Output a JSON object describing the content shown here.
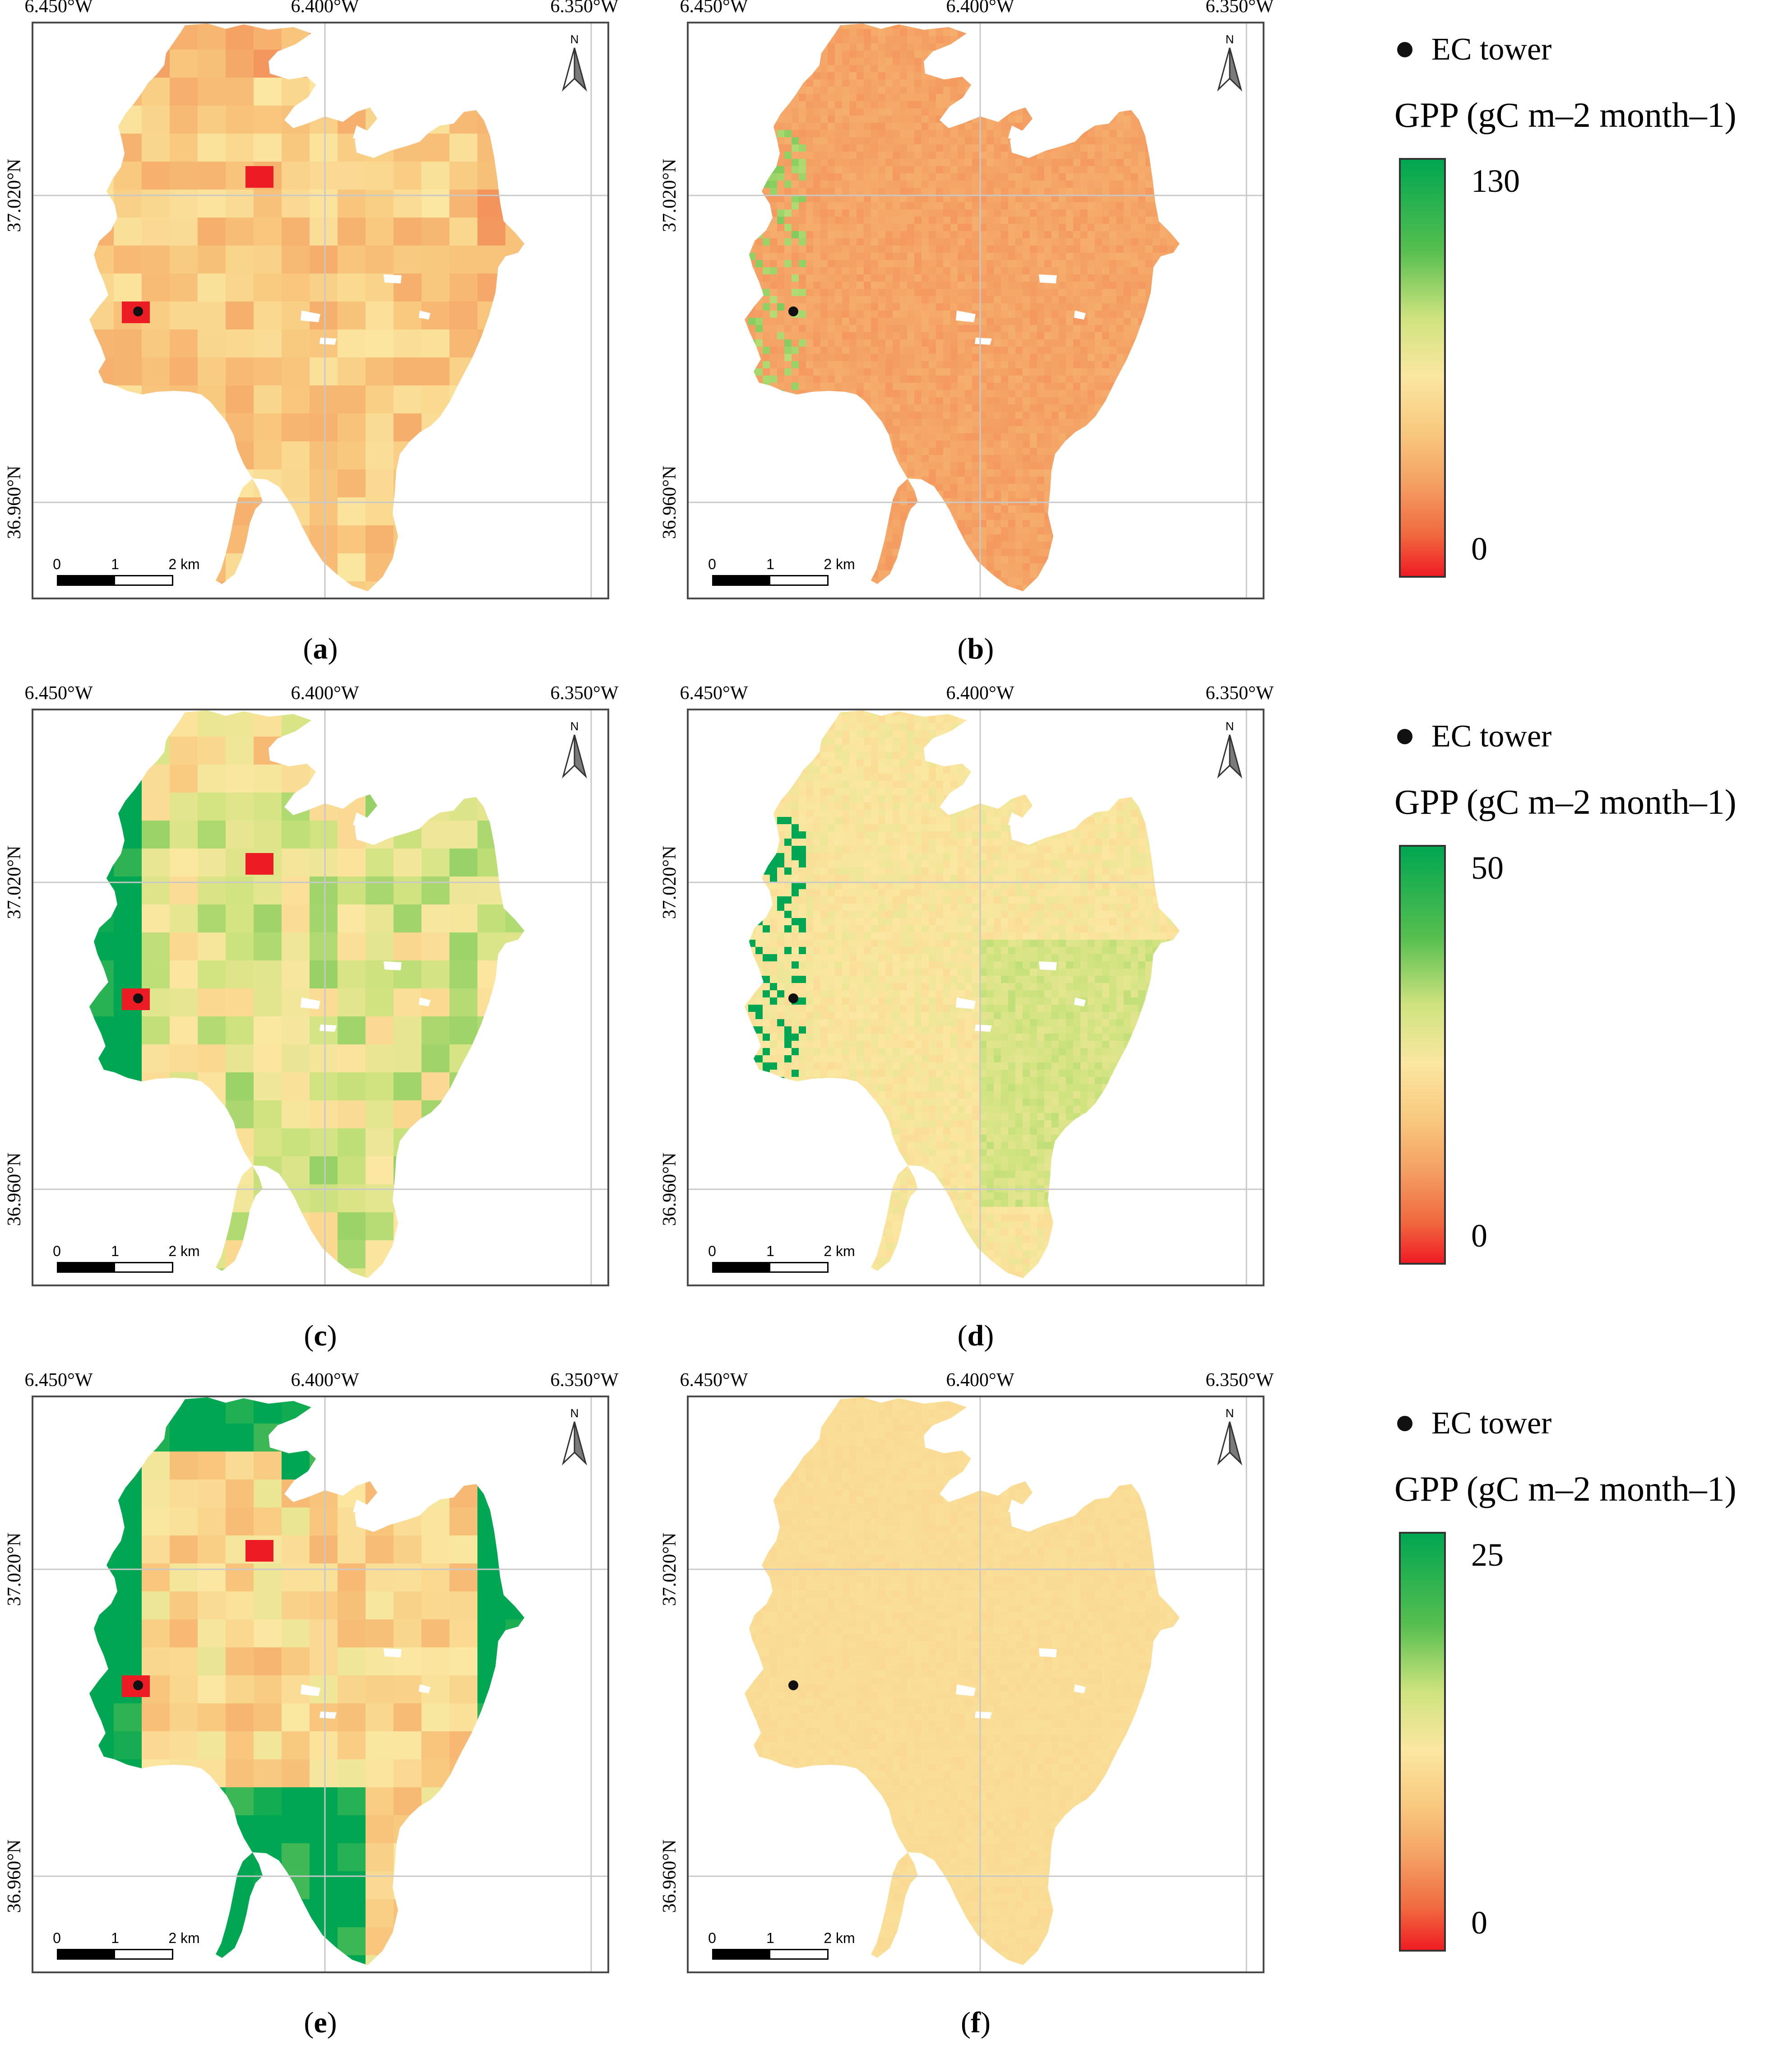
{
  "map_axes": {
    "lon_ticks": [
      "6.450°W",
      "6.400°W",
      "6.350°W"
    ],
    "lat_ticks": [
      "37.020°N",
      "36.960°N"
    ]
  },
  "north_label": "N",
  "scale_bar": {
    "ticks": [
      "0",
      "1",
      "2 km"
    ]
  },
  "panels": [
    {
      "id": "a",
      "caption": "a",
      "style": "grid",
      "scheme": "a"
    },
    {
      "id": "b",
      "caption": "b",
      "style": "fine",
      "scheme": "b"
    },
    {
      "id": "c",
      "caption": "c",
      "style": "grid",
      "scheme": "c"
    },
    {
      "id": "d",
      "caption": "d",
      "style": "fine",
      "scheme": "d"
    },
    {
      "id": "e",
      "caption": "e",
      "style": "grid",
      "scheme": "e"
    },
    {
      "id": "f",
      "caption": "f",
      "style": "fine",
      "scheme": "f"
    }
  ],
  "legends": [
    {
      "marker_label": "EC tower",
      "title": "GPP (gC m–2 month–1)",
      "max": "130",
      "min": "0"
    },
    {
      "marker_label": "EC tower",
      "title": "GPP (gC m–2 month–1)",
      "max": "50",
      "min": "0"
    },
    {
      "marker_label": "EC tower",
      "title": "GPP (gC m–2 month–1)",
      "max": "25",
      "min": "0"
    }
  ],
  "colors": {
    "frame": "#4a4a4a",
    "gridline": "#c8c8c8",
    "tower": "#111111",
    "high": "#00a651",
    "low": "#ef1c24"
  }
}
